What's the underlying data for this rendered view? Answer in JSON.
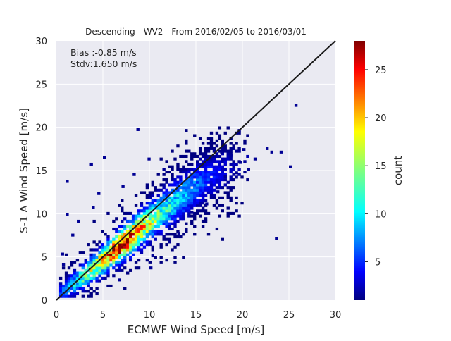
{
  "chart_data": {
    "type": "heatmap",
    "title": "Descending - WV2 - From 2016/02/05 to 2016/03/01",
    "xlabel": "ECMWF Wind Speed [m/s]",
    "ylabel": "S-1 A Wind Speed [m/s]",
    "xlim": [
      0,
      30
    ],
    "ylim": [
      0,
      30
    ],
    "xticks": [
      "0",
      "5",
      "10",
      "15",
      "20",
      "25",
      "30"
    ],
    "yticks": [
      "0",
      "5",
      "10",
      "15",
      "20",
      "25",
      "30"
    ],
    "grid": true,
    "background": "#eaeaf2",
    "annotations": {
      "bias": "Bias :-0.85 m/s",
      "stdv": "Stdv:1.650 m/s"
    },
    "reference_line": {
      "x": [
        0,
        30
      ],
      "y": [
        0,
        30
      ]
    },
    "colorbar": {
      "label": "count",
      "range": [
        1,
        28
      ],
      "ticks": [
        "5",
        "10",
        "15",
        "20",
        "25"
      ],
      "colormap": "jet"
    },
    "density_ridge": {
      "description_points_x": [
        1,
        3,
        5,
        7,
        9,
        11,
        13,
        15,
        17,
        19
      ],
      "mode_y": [
        1.2,
        2.8,
        4.6,
        6.4,
        8.2,
        9.9,
        11.6,
        13.2,
        14.6,
        15.6
      ],
      "peak_count": [
        8,
        14,
        20,
        27,
        20,
        13,
        10,
        7,
        4,
        2
      ]
    },
    "outliers": [
      {
        "x": 25.6,
        "y": 22.4
      },
      {
        "x": 8.6,
        "y": 19.6
      },
      {
        "x": 23.5,
        "y": 7.0
      },
      {
        "x": 25.0,
        "y": 15.3
      },
      {
        "x": 1.0,
        "y": 13.6
      },
      {
        "x": 3.6,
        "y": 15.6
      },
      {
        "x": 5.0,
        "y": 16.4
      },
      {
        "x": 23.0,
        "y": 17.0
      },
      {
        "x": 24.0,
        "y": 17.0
      },
      {
        "x": 22.5,
        "y": 17.4
      },
      {
        "x": 20.0,
        "y": 17.3
      },
      {
        "x": 21.2,
        "y": 16.2
      },
      {
        "x": 17.6,
        "y": 17.0
      },
      {
        "x": 18.6,
        "y": 16.6
      },
      {
        "x": 19.6,
        "y": 15.8
      },
      {
        "x": 20.5,
        "y": 15.0
      },
      {
        "x": 18.0,
        "y": 14.2
      },
      {
        "x": 19.2,
        "y": 14.6
      },
      {
        "x": 17.2,
        "y": 12.4
      },
      {
        "x": 16.0,
        "y": 11.0
      },
      {
        "x": 14.4,
        "y": 10.0
      },
      {
        "x": 13.0,
        "y": 7.6
      },
      {
        "x": 12.0,
        "y": 6.6
      },
      {
        "x": 10.2,
        "y": 5.0
      },
      {
        "x": 10.0,
        "y": 3.6
      },
      {
        "x": 6.6,
        "y": 2.2
      },
      {
        "x": 1.0,
        "y": 9.8
      },
      {
        "x": 1.6,
        "y": 7.4
      },
      {
        "x": 2.2,
        "y": 9.0
      },
      {
        "x": 3.8,
        "y": 10.6
      },
      {
        "x": 4.4,
        "y": 12.2
      },
      {
        "x": 7.0,
        "y": 13.0
      },
      {
        "x": 9.8,
        "y": 16.2
      },
      {
        "x": 11.4,
        "y": 15.0
      },
      {
        "x": 8.2,
        "y": 14.4
      },
      {
        "x": 0.5,
        "y": 5.2
      },
      {
        "x": 0.6,
        "y": 4.0
      }
    ]
  }
}
